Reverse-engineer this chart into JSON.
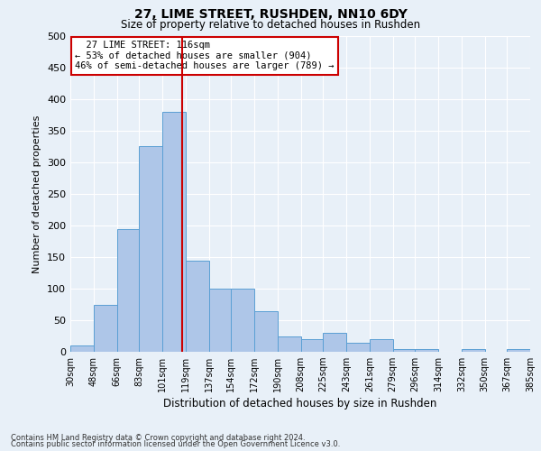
{
  "title1": "27, LIME STREET, RUSHDEN, NN10 6DY",
  "title2": "Size of property relative to detached houses in Rushden",
  "xlabel": "Distribution of detached houses by size in Rushden",
  "ylabel": "Number of detached properties",
  "footnote1": "Contains HM Land Registry data © Crown copyright and database right 2024.",
  "footnote2": "Contains public sector information licensed under the Open Government Licence v3.0.",
  "annotation_line1": "27 LIME STREET: 116sqm",
  "annotation_line2": "← 53% of detached houses are smaller (904)",
  "annotation_line3": "46% of semi-detached houses are larger (789) →",
  "property_size": 116,
  "bin_edges": [
    30,
    48,
    66,
    83,
    101,
    119,
    137,
    154,
    172,
    190,
    208,
    225,
    243,
    261,
    279,
    296,
    314,
    332,
    350,
    367,
    385
  ],
  "bar_heights": [
    10,
    75,
    195,
    325,
    380,
    145,
    100,
    100,
    65,
    25,
    20,
    30,
    15,
    20,
    5,
    5,
    0,
    5,
    0,
    5
  ],
  "bar_color": "#aec6e8",
  "bar_edge_color": "#5a9fd4",
  "vline_color": "#cc0000",
  "background_color": "#e8f0f8",
  "grid_color": "#ffffff",
  "annotation_box_color": "#ffffff",
  "annotation_box_edge": "#cc0000",
  "ylim": [
    0,
    500
  ],
  "yticks": [
    0,
    50,
    100,
    150,
    200,
    250,
    300,
    350,
    400,
    450,
    500
  ]
}
